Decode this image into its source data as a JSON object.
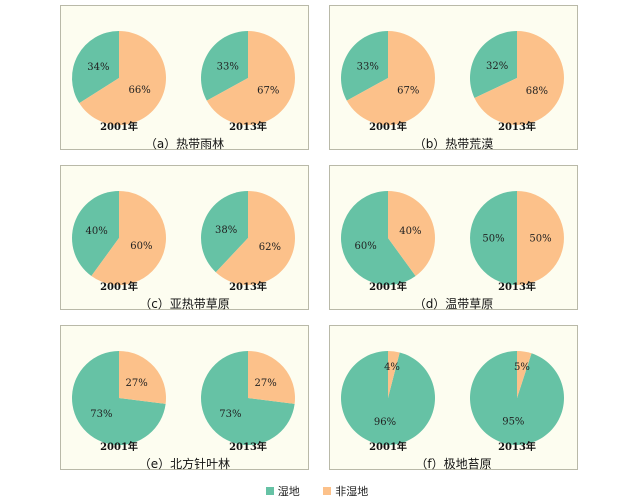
{
  "colors": {
    "wetland": "#66c2a5",
    "nonwetland": "#fcc18a"
  },
  "legend": {
    "wetland": "湿地",
    "nonwetland": "非湿地"
  },
  "chart_data": [
    {
      "type": "pie",
      "caption": "（a）热带雨林",
      "pies": [
        {
          "label": "2001年",
          "values": [
            34,
            66
          ],
          "labels": [
            "34%",
            "66%"
          ]
        },
        {
          "label": "2013年",
          "values": [
            33,
            67
          ],
          "labels": [
            "33%",
            "67%"
          ]
        }
      ]
    },
    {
      "type": "pie",
      "caption": "（b）热带荒漠",
      "pies": [
        {
          "label": "2001年",
          "values": [
            33,
            67
          ],
          "labels": [
            "33%",
            "67%"
          ]
        },
        {
          "label": "2013年",
          "values": [
            32,
            68
          ],
          "labels": [
            "32%",
            "68%"
          ]
        }
      ]
    },
    {
      "type": "pie",
      "caption": "（c）亚热带草原",
      "pies": [
        {
          "label": "2001年",
          "values": [
            40,
            60
          ],
          "labels": [
            "40%",
            "60%"
          ]
        },
        {
          "label": "2013年",
          "values": [
            38,
            62
          ],
          "labels": [
            "38%",
            "62%"
          ]
        }
      ]
    },
    {
      "type": "pie",
      "caption": "（d）温带草原",
      "pies": [
        {
          "label": "2001年",
          "values": [
            60,
            40
          ],
          "labels": [
            "60%",
            "40%"
          ]
        },
        {
          "label": "2013年",
          "values": [
            50,
            50
          ],
          "labels": [
            "50%",
            "50%"
          ]
        }
      ]
    },
    {
      "type": "pie",
      "caption": "（e）北方针叶林",
      "pies": [
        {
          "label": "2001年",
          "values": [
            73,
            27
          ],
          "labels": [
            "73%",
            "27%"
          ]
        },
        {
          "label": "2013年",
          "values": [
            73,
            27
          ],
          "labels": [
            "73%",
            "27%"
          ]
        }
      ]
    },
    {
      "type": "pie",
      "caption": "（f）极地苔原",
      "pies": [
        {
          "label": "2001年",
          "values": [
            96,
            4
          ],
          "labels": [
            "96%",
            "4%"
          ]
        },
        {
          "label": "2013年",
          "values": [
            95,
            5
          ],
          "labels": [
            "95%",
            "5%"
          ]
        }
      ]
    }
  ]
}
